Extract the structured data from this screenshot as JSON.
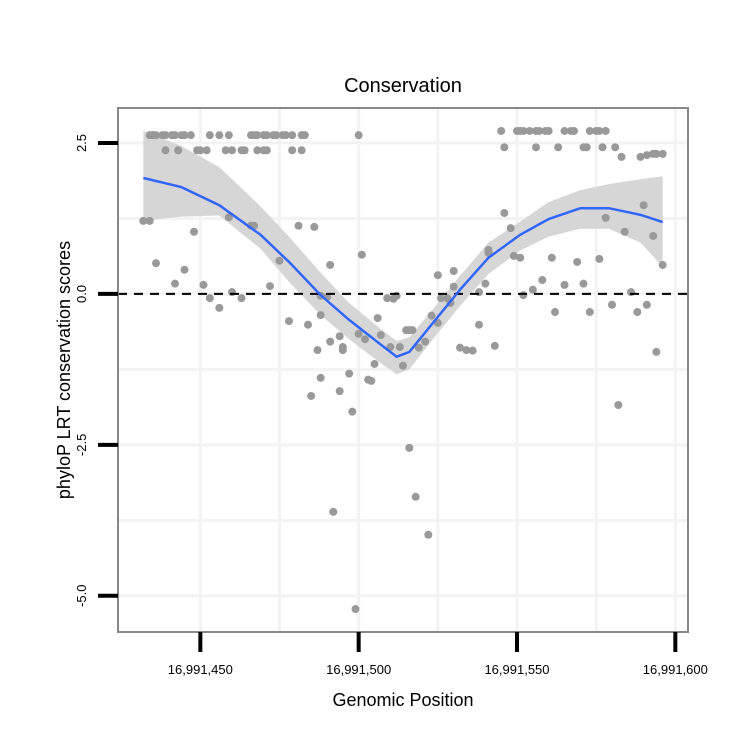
{
  "chart_data": {
    "type": "scatter",
    "title": "Conservation",
    "xlabel": "Genomic Position",
    "ylabel": "phyloP LRT conservation scores",
    "xlim": [
      16991424,
      16991604
    ],
    "ylim": [
      -5.6,
      3.08
    ],
    "xticks": [
      16991450,
      16991500,
      16991550,
      16991600
    ],
    "xtick_labels": [
      "16,991,450",
      "16,991,500",
      "16,991,550",
      "16,991,600"
    ],
    "yticks": [
      2.5,
      0,
      -2.5,
      -5
    ],
    "ytick_labels": [
      "2.5",
      "0.0",
      "-2.5",
      "-5.0"
    ],
    "minor_x": [
      16991475,
      16991525,
      16991575
    ],
    "minor_y": [
      1.25,
      -1.25,
      -3.75
    ],
    "grid": true,
    "hline": 0,
    "colors": {
      "points": "#999999",
      "smooth": "#3366ff",
      "band": "#d6d6d6",
      "border": "#888888"
    },
    "points": [
      [
        16991434,
        2.63
      ],
      [
        16991435,
        2.63
      ],
      [
        16991436,
        2.63
      ],
      [
        16991438,
        2.63
      ],
      [
        16991439,
        2.63
      ],
      [
        16991441,
        2.63
      ],
      [
        16991442,
        2.63
      ],
      [
        16991444,
        2.63
      ],
      [
        16991445,
        2.63
      ],
      [
        16991447,
        2.63
      ],
      [
        16991453,
        2.63
      ],
      [
        16991456,
        2.63
      ],
      [
        16991459,
        2.63
      ],
      [
        16991466,
        2.63
      ],
      [
        16991467,
        2.63
      ],
      [
        16991468,
        2.63
      ],
      [
        16991470,
        2.63
      ],
      [
        16991471,
        2.63
      ],
      [
        16991473,
        2.63
      ],
      [
        16991474,
        2.63
      ],
      [
        16991476,
        2.63
      ],
      [
        16991477,
        2.63
      ],
      [
        16991479,
        2.63
      ],
      [
        16991482,
        2.63
      ],
      [
        16991483,
        2.63
      ],
      [
        16991500,
        2.63
      ],
      [
        16991439,
        2.38
      ],
      [
        16991443,
        2.38
      ],
      [
        16991449,
        2.38
      ],
      [
        16991450,
        2.38
      ],
      [
        16991452,
        2.38
      ],
      [
        16991458,
        2.38
      ],
      [
        16991460,
        2.38
      ],
      [
        16991463,
        2.38
      ],
      [
        16991464,
        2.38
      ],
      [
        16991468,
        2.38
      ],
      [
        16991470,
        2.38
      ],
      [
        16991471,
        2.38
      ],
      [
        16991479,
        2.38
      ],
      [
        16991482,
        2.38
      ],
      [
        16991545,
        2.7
      ],
      [
        16991550,
        2.7
      ],
      [
        16991551,
        2.7
      ],
      [
        16991552,
        2.7
      ],
      [
        16991554,
        2.7
      ],
      [
        16991556,
        2.7
      ],
      [
        16991557,
        2.7
      ],
      [
        16991559,
        2.7
      ],
      [
        16991560,
        2.7
      ],
      [
        16991565,
        2.7
      ],
      [
        16991567,
        2.7
      ],
      [
        16991568,
        2.7
      ],
      [
        16991573,
        2.7
      ],
      [
        16991575,
        2.7
      ],
      [
        16991576,
        2.7
      ],
      [
        16991578,
        2.7
      ],
      [
        16991546,
        2.43
      ],
      [
        16991556,
        2.43
      ],
      [
        16991563,
        2.43
      ],
      [
        16991571,
        2.43
      ],
      [
        16991572,
        2.43
      ],
      [
        16991577,
        2.43
      ],
      [
        16991581,
        2.43
      ],
      [
        16991583,
        2.27
      ],
      [
        16991589,
        2.27
      ],
      [
        16991591,
        2.3
      ],
      [
        16991593,
        2.32
      ],
      [
        16991594,
        2.32
      ],
      [
        16991596,
        2.32
      ],
      [
        16991432,
        1.21
      ],
      [
        16991434,
        1.21
      ],
      [
        16991436,
        0.51
      ],
      [
        16991442,
        0.17
      ],
      [
        16991445,
        0.4
      ],
      [
        16991448,
        1.03
      ],
      [
        16991451,
        0.15
      ],
      [
        16991453,
        -0.07
      ],
      [
        16991456,
        -0.23
      ],
      [
        16991459,
        1.27
      ],
      [
        16991460,
        0.03
      ],
      [
        16991463,
        -0.07
      ],
      [
        16991466,
        1.13
      ],
      [
        16991467,
        1.13
      ],
      [
        16991472,
        0.13
      ],
      [
        16991475,
        0.55
      ],
      [
        16991478,
        -0.45
      ],
      [
        16991481,
        1.13
      ],
      [
        16991484,
        -0.51
      ],
      [
        16991486,
        1.11
      ],
      [
        16991488,
        -0.35
      ],
      [
        16991488,
        -0.03
      ],
      [
        16991490,
        -0.05
      ],
      [
        16991491,
        0.48
      ],
      [
        16991491,
        -0.79
      ],
      [
        16991488,
        -1.39
      ],
      [
        16991487,
        -0.93
      ],
      [
        16991485,
        -1.69
      ],
      [
        16991494,
        -0.7
      ],
      [
        16991495,
        -0.93
      ],
      [
        16991495,
        -0.88
      ],
      [
        16991500,
        -0.66
      ],
      [
        16991497,
        -1.32
      ],
      [
        16991492,
        -3.61
      ],
      [
        16991494,
        -1.61
      ],
      [
        16991498,
        -1.95
      ],
      [
        16991499,
        -5.22
      ],
      [
        16991501,
        0.65
      ],
      [
        16991502,
        -0.75
      ],
      [
        16991503,
        -1.42
      ],
      [
        16991504,
        -1.44
      ],
      [
        16991505,
        -1.16
      ],
      [
        16991506,
        -0.4
      ],
      [
        16991507,
        -0.68
      ],
      [
        16991509,
        -0.07
      ],
      [
        16991510,
        -0.88
      ],
      [
        16991511,
        -0.08
      ],
      [
        16991512,
        -0.03
      ],
      [
        16991513,
        -0.88
      ],
      [
        16991514,
        -1.19
      ],
      [
        16991515,
        -0.6
      ],
      [
        16991516,
        -0.6
      ],
      [
        16991516,
        -2.55
      ],
      [
        16991518,
        -3.36
      ],
      [
        16991517,
        -0.6
      ],
      [
        16991519,
        -0.89
      ],
      [
        16991522,
        -3.99
      ],
      [
        16991521,
        -0.79
      ],
      [
        16991523,
        -0.36
      ],
      [
        16991525,
        0.31
      ],
      [
        16991525,
        -0.48
      ],
      [
        16991526,
        -0.07
      ],
      [
        16991528,
        -0.07
      ],
      [
        16991529,
        -0.15
      ],
      [
        16991530,
        0.38
      ],
      [
        16991530,
        0.12
      ],
      [
        16991532,
        -0.89
      ],
      [
        16991534,
        -0.93
      ],
      [
        16991536,
        -0.94
      ],
      [
        16991538,
        0.03
      ],
      [
        16991538,
        -0.51
      ],
      [
        16991540,
        0.17
      ],
      [
        16991541,
        0.68
      ],
      [
        16991541,
        0.73
      ],
      [
        16991543,
        -0.86
      ],
      [
        16991546,
        1.34
      ],
      [
        16991548,
        1.09
      ],
      [
        16991549,
        0.63
      ],
      [
        16991551,
        0.6
      ],
      [
        16991552,
        -0.02
      ],
      [
        16991555,
        0.07
      ],
      [
        16991558,
        0.23
      ],
      [
        16991561,
        0.6
      ],
      [
        16991562,
        -0.3
      ],
      [
        16991565,
        0.15
      ],
      [
        16991569,
        0.53
      ],
      [
        16991571,
        0.17
      ],
      [
        16991573,
        -0.3
      ],
      [
        16991576,
        0.58
      ],
      [
        16991578,
        1.26
      ],
      [
        16991580,
        -0.18
      ],
      [
        16991582,
        -1.84
      ],
      [
        16991584,
        1.03
      ],
      [
        16991586,
        0.03
      ],
      [
        16991588,
        -0.3
      ],
      [
        16991590,
        1.47
      ],
      [
        16991591,
        -0.18
      ],
      [
        16991593,
        0.96
      ],
      [
        16991594,
        -0.96
      ],
      [
        16991596,
        0.48
      ]
    ],
    "smooth": {
      "x": [
        16991432,
        16991444,
        16991456,
        16991469,
        16991478,
        16991488,
        16991497,
        16991507,
        16991512,
        16991516,
        16991523,
        16991532,
        16991541,
        16991551,
        16991560,
        16991570,
        16991579,
        16991589,
        16991596
      ],
      "y": [
        1.92,
        1.77,
        1.47,
        0.98,
        0.53,
        -0.02,
        -0.43,
        -0.84,
        -1.04,
        -0.96,
        -0.51,
        0.07,
        0.6,
        0.98,
        1.24,
        1.42,
        1.42,
        1.31,
        1.19
      ],
      "upper": [
        2.7,
        2.45,
        2.1,
        1.45,
        0.95,
        0.35,
        -0.15,
        -0.58,
        -0.78,
        -0.72,
        -0.28,
        0.3,
        0.85,
        1.2,
        1.52,
        1.72,
        1.82,
        1.9,
        1.95
      ],
      "lower": [
        1.21,
        1.28,
        1.3,
        0.75,
        0.2,
        -0.35,
        -0.75,
        -1.15,
        -1.33,
        -1.25,
        -0.78,
        -0.2,
        0.33,
        0.72,
        0.95,
        1.08,
        1.08,
        0.85,
        0.45
      ]
    }
  }
}
